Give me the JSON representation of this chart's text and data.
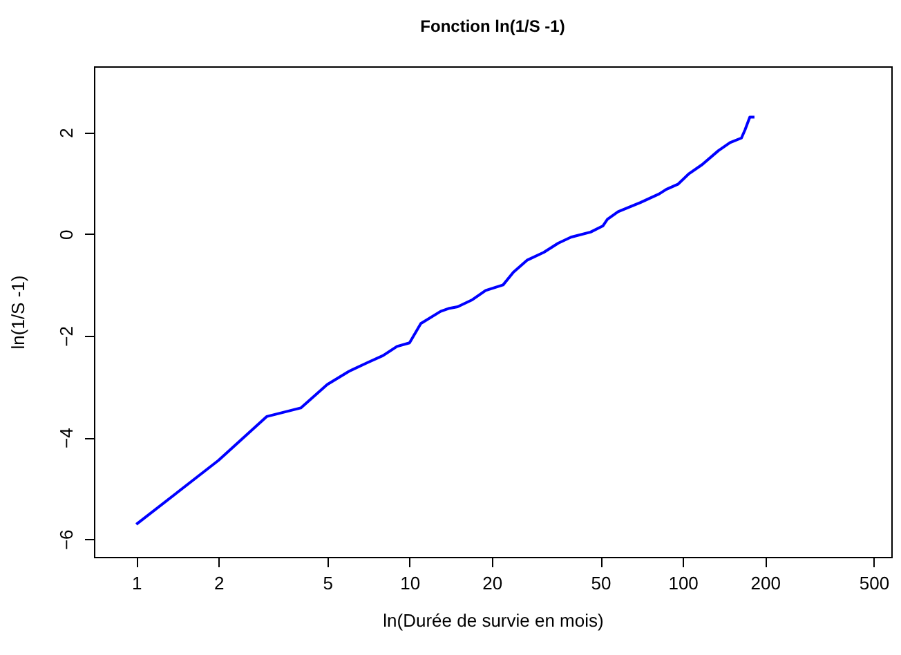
{
  "chart_data": {
    "type": "line",
    "title": "Fonction ln(1/S -1)",
    "xlabel": "ln(Durée de survie en mois)",
    "ylabel": "ln(1/S -1)",
    "log": "x",
    "xlim": [
      0.7,
      580
    ],
    "xticks": [
      1,
      2,
      5,
      10,
      20,
      50,
      100,
      200,
      500
    ],
    "ylim": [
      -6.35,
      3.3
    ],
    "yticks": [
      -6,
      -4,
      -2,
      0,
      2
    ],
    "grid": false,
    "marker": "none",
    "line_style": "solid",
    "x": [
      1,
      2,
      3,
      4,
      5,
      6,
      7,
      8,
      9,
      10,
      11,
      13,
      14,
      15,
      17,
      19,
      22,
      24,
      27,
      31,
      35,
      39,
      46,
      51,
      53,
      58,
      70,
      82,
      87,
      96,
      105,
      118,
      135,
      149,
      164,
      169,
      176,
      183
    ],
    "series": [
      {
        "color": "#0000ff",
        "values": [
          -5.71,
          -4.45,
          -3.59,
          -3.42,
          -2.96,
          -2.7,
          -2.53,
          -2.39,
          -2.21,
          -2.14,
          -1.76,
          -1.52,
          -1.46,
          -1.43,
          -1.29,
          -1.11,
          -1.0,
          -0.75,
          -0.51,
          -0.36,
          -0.18,
          -0.06,
          0.04,
          0.16,
          0.29,
          0.44,
          0.62,
          0.79,
          0.88,
          0.98,
          1.18,
          1.37,
          1.64,
          1.8,
          1.89,
          2.05,
          2.3,
          2.3
        ]
      }
    ]
  }
}
